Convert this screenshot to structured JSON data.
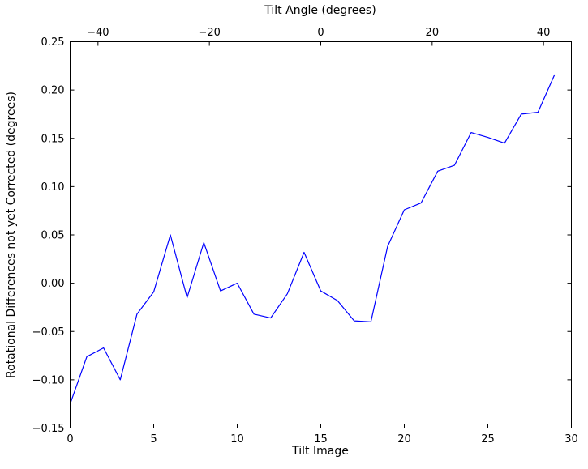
{
  "chart_data": {
    "type": "line",
    "top_axis_title": "Tilt Angle (degrees)",
    "xlabel": "Tilt Image",
    "ylabel": "Rotational Differences not yet Corrected (degrees)",
    "line_color": "#0000ff",
    "axis_color": "#000000",
    "background_color": "#ffffff",
    "x": [
      0,
      1,
      2,
      3,
      4,
      5,
      6,
      7,
      8,
      9,
      10,
      11,
      12,
      13,
      14,
      15,
      16,
      17,
      18,
      19,
      20,
      21,
      22,
      23,
      24,
      25,
      26,
      27,
      28,
      29
    ],
    "y": [
      -0.125,
      -0.076,
      -0.067,
      -0.1,
      -0.032,
      -0.009,
      0.05,
      -0.015,
      0.042,
      -0.008,
      0.0,
      -0.032,
      -0.036,
      -0.011,
      0.032,
      -0.008,
      -0.018,
      -0.039,
      -0.04,
      0.038,
      0.076,
      0.083,
      0.116,
      0.122,
      0.156,
      0.151,
      0.145,
      0.175,
      0.177,
      0.216
    ],
    "xlim": [
      0,
      30
    ],
    "ylim": [
      -0.15,
      0.25
    ],
    "top_xlim": [
      -45,
      45
    ],
    "grid": false,
    "legend": null,
    "xticks": {
      "values": [
        0,
        5,
        10,
        15,
        20,
        25,
        30
      ],
      "labels": [
        "0",
        "5",
        "10",
        "15",
        "20",
        "25",
        "30"
      ]
    },
    "top_xticks": {
      "values": [
        -40,
        -20,
        0,
        20,
        40
      ],
      "labels": [
        "−40",
        "−20",
        "0",
        "20",
        "40"
      ]
    },
    "yticks": {
      "values": [
        0.25,
        0.2,
        0.15,
        0.1,
        0.05,
        0.0,
        -0.05,
        -0.1,
        -0.15
      ],
      "labels": [
        "0.25",
        "0.20",
        "0.15",
        "0.10",
        "0.05",
        "0.00",
        "−0.05",
        "−0.10",
        "−0.15"
      ]
    }
  }
}
